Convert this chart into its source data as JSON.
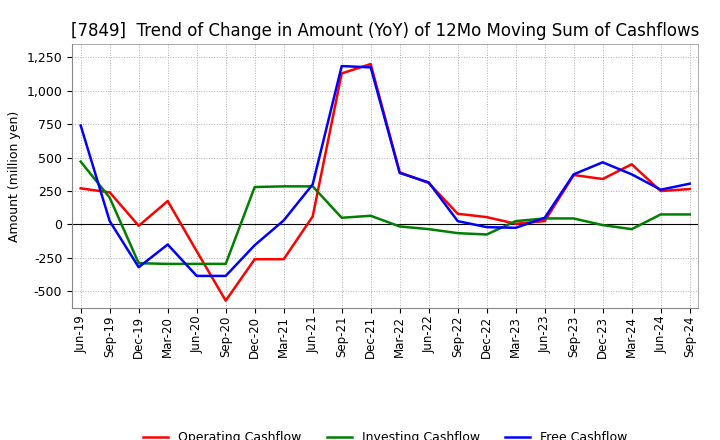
{
  "title": "[7849]  Trend of Change in Amount (YoY) of 12Mo Moving Sum of Cashflows",
  "ylabel": "Amount (million yen)",
  "x_labels": [
    "Jun-19",
    "Sep-19",
    "Dec-19",
    "Mar-20",
    "Jun-20",
    "Sep-20",
    "Dec-20",
    "Mar-21",
    "Jun-21",
    "Sep-21",
    "Dec-21",
    "Mar-22",
    "Jun-22",
    "Sep-22",
    "Dec-22",
    "Mar-23",
    "Jun-23",
    "Sep-23",
    "Dec-23",
    "Mar-24",
    "Jun-24",
    "Sep-24"
  ],
  "operating": [
    270,
    240,
    -10,
    175,
    -200,
    -570,
    -260,
    -260,
    60,
    1130,
    1200,
    390,
    310,
    80,
    55,
    5,
    25,
    370,
    340,
    450,
    250,
    265
  ],
  "investing": [
    470,
    200,
    -290,
    -295,
    -295,
    -295,
    280,
    285,
    285,
    50,
    65,
    -15,
    -35,
    -65,
    -75,
    25,
    45,
    45,
    -5,
    -35,
    75,
    75
  ],
  "free": [
    740,
    25,
    -320,
    -150,
    -385,
    -385,
    -155,
    30,
    300,
    1185,
    1175,
    385,
    315,
    25,
    -20,
    -25,
    50,
    375,
    465,
    375,
    260,
    305
  ],
  "ylim": [
    -625,
    1350
  ],
  "yticks": [
    -500,
    -250,
    0,
    250,
    500,
    750,
    1000,
    1250
  ],
  "operating_color": "#ff0000",
  "investing_color": "#008000",
  "free_color": "#0000ff",
  "background_color": "#ffffff",
  "grid_color": "#b0b0b0",
  "title_fontsize": 12,
  "axis_fontsize": 9,
  "legend_fontsize": 9,
  "linewidth": 1.8
}
